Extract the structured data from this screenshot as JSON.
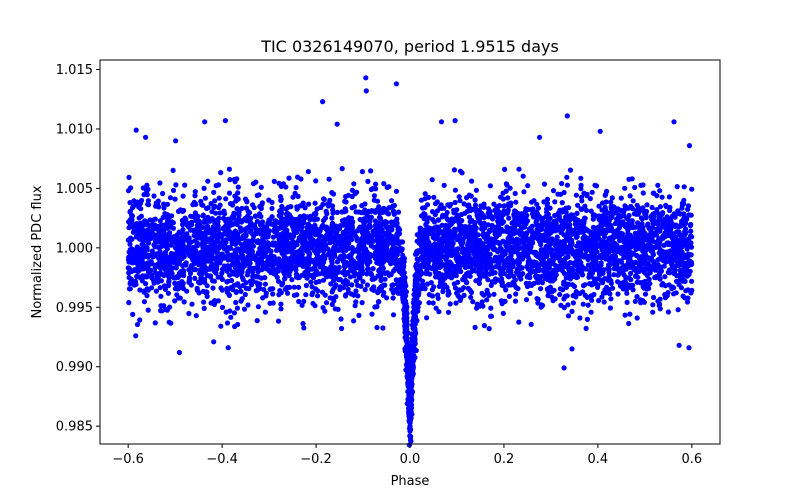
{
  "chart_data": {
    "type": "scatter",
    "title": "TIC 0326149070, period 1.9515 days",
    "xlabel": "Phase",
    "ylabel": "Normalized PDC flux",
    "xlim": [
      -0.66,
      0.66
    ],
    "ylim": [
      0.9835,
      1.0158
    ],
    "xticks": [
      -0.6,
      -0.4,
      -0.2,
      0.0,
      0.2,
      0.4,
      0.6
    ],
    "xtick_labels": [
      "−0.6",
      "−0.4",
      "−0.2",
      "0.0",
      "0.2",
      "0.4",
      "0.6"
    ],
    "yticks": [
      0.985,
      0.99,
      0.995,
      1.0,
      1.005,
      1.01,
      1.015
    ],
    "ytick_labels": [
      "0.985",
      "0.990",
      "0.995",
      "1.000",
      "1.005",
      "1.010",
      "1.015"
    ],
    "grid": false,
    "marker_color": "#0000ff",
    "phase_range": [
      -0.6,
      0.6
    ],
    "baseline_flux": 1.0,
    "out_of_transit_scatter": 0.0022,
    "transit": {
      "center_phase": 0.0,
      "min_flux": 0.9855,
      "half_width_phase": 0.028
    },
    "outliers": [
      {
        "x": -0.094,
        "y": 1.0143
      },
      {
        "x": -0.093,
        "y": 1.0132
      },
      {
        "x": -0.029,
        "y": 1.0138
      },
      {
        "x": -0.186,
        "y": 1.0123
      },
      {
        "x": -0.155,
        "y": 1.0104
      },
      {
        "x": -0.393,
        "y": 1.0107
      },
      {
        "x": -0.437,
        "y": 1.0106
      },
      {
        "x": -0.583,
        "y": 1.0099
      },
      {
        "x": -0.563,
        "y": 1.0093
      },
      {
        "x": -0.499,
        "y": 1.009
      },
      {
        "x": 0.067,
        "y": 1.0106
      },
      {
        "x": 0.096,
        "y": 1.0107
      },
      {
        "x": 0.335,
        "y": 1.0111
      },
      {
        "x": 0.405,
        "y": 1.0098
      },
      {
        "x": 0.562,
        "y": 1.0106
      },
      {
        "x": 0.595,
        "y": 1.0086
      },
      {
        "x": 0.276,
        "y": 1.0093
      },
      {
        "x": 0.328,
        "y": 0.9899
      },
      {
        "x": 0.345,
        "y": 0.9915
      },
      {
        "x": -0.491,
        "y": 0.9912
      },
      {
        "x": -0.584,
        "y": 0.9926
      },
      {
        "x": 0.594,
        "y": 0.9916
      },
      {
        "x": 0.573,
        "y": 0.9918
      },
      {
        "x": -0.418,
        "y": 0.9921
      },
      {
        "x": -0.387,
        "y": 0.9916
      }
    ]
  }
}
